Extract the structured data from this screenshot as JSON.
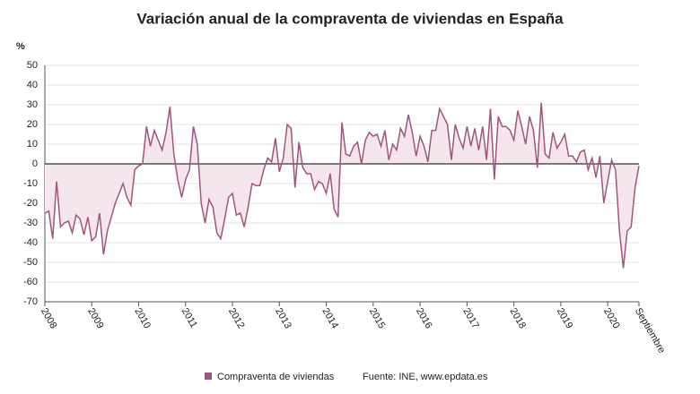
{
  "chart_data": {
    "type": "line",
    "title": "Variación anual de la compraventa de viviendas en España",
    "y_label": "%",
    "source": "Fuente: INE, www.epdata.es",
    "categories": [
      "2008",
      null,
      null,
      null,
      null,
      null,
      null,
      null,
      null,
      null,
      null,
      null,
      "2009",
      null,
      null,
      null,
      null,
      null,
      null,
      null,
      null,
      null,
      null,
      null,
      "2010",
      null,
      null,
      null,
      null,
      null,
      null,
      null,
      null,
      null,
      null,
      null,
      "2011",
      null,
      null,
      null,
      null,
      null,
      null,
      null,
      null,
      null,
      null,
      null,
      "2012",
      null,
      null,
      null,
      null,
      null,
      null,
      null,
      null,
      null,
      null,
      null,
      "2013",
      null,
      null,
      null,
      null,
      null,
      null,
      null,
      null,
      null,
      null,
      null,
      "2014",
      null,
      null,
      null,
      null,
      null,
      null,
      null,
      null,
      null,
      null,
      null,
      "2015",
      null,
      null,
      null,
      null,
      null,
      null,
      null,
      null,
      null,
      null,
      null,
      "2016",
      null,
      null,
      null,
      null,
      null,
      null,
      null,
      null,
      null,
      null,
      null,
      "2017",
      null,
      null,
      null,
      null,
      null,
      null,
      null,
      null,
      null,
      null,
      null,
      "2018",
      null,
      null,
      null,
      null,
      null,
      null,
      null,
      null,
      null,
      null,
      null,
      "2019",
      null,
      null,
      null,
      null,
      null,
      null,
      null,
      null,
      null,
      null,
      null,
      "2020",
      null,
      null,
      null,
      null,
      null,
      null,
      null,
      "Septiembre"
    ],
    "series": [
      {
        "name": "Compraventa de viviendas",
        "color": "#a0557e",
        "fill": "#f5e6ee",
        "values": [
          -25,
          -24,
          -38,
          -9,
          -32,
          -30,
          -29,
          -35,
          -26,
          -28,
          -36,
          -27,
          -39,
          -37,
          -25,
          -46,
          -34,
          -27,
          -20,
          -15,
          -10,
          -17,
          -21,
          -3,
          -1,
          0,
          19,
          9,
          17,
          12,
          7,
          16,
          29,
          5,
          -8,
          -17,
          -8,
          -3,
          19,
          10,
          -20,
          -30,
          -18,
          -22,
          -35,
          -38,
          -28,
          -17,
          -15,
          -26,
          -25,
          -32,
          -22,
          -10,
          -11,
          -11,
          -3,
          3,
          1,
          13,
          -4,
          3,
          20,
          18,
          -12,
          11,
          -2,
          -5,
          -5,
          -13,
          -9,
          -10,
          -15,
          -5,
          -23,
          -27,
          21,
          5,
          4,
          9,
          11,
          0,
          12,
          16,
          14,
          15,
          9,
          17,
          2,
          10,
          7,
          18,
          14,
          25,
          16,
          4,
          14,
          9,
          1,
          17,
          17,
          28,
          24,
          20,
          2,
          20,
          13,
          8,
          19,
          9,
          18,
          7,
          19,
          2,
          28,
          -8,
          24,
          19,
          19,
          17,
          12,
          27,
          19,
          10,
          24,
          17,
          -2,
          31,
          5,
          3,
          16,
          8,
          11,
          15,
          4,
          4,
          1,
          6,
          7,
          -3,
          3,
          -7,
          4,
          -20,
          -9,
          2,
          -3,
          -34,
          -53,
          -34,
          -32,
          -12,
          -1
        ]
      }
    ],
    "ylim": [
      -70,
      50
    ],
    "yticks": [
      -70,
      -60,
      -50,
      -40,
      -30,
      -20,
      -10,
      0,
      10,
      20,
      30,
      40,
      50
    ],
    "grid": true,
    "zero_line_color": "#000000"
  }
}
